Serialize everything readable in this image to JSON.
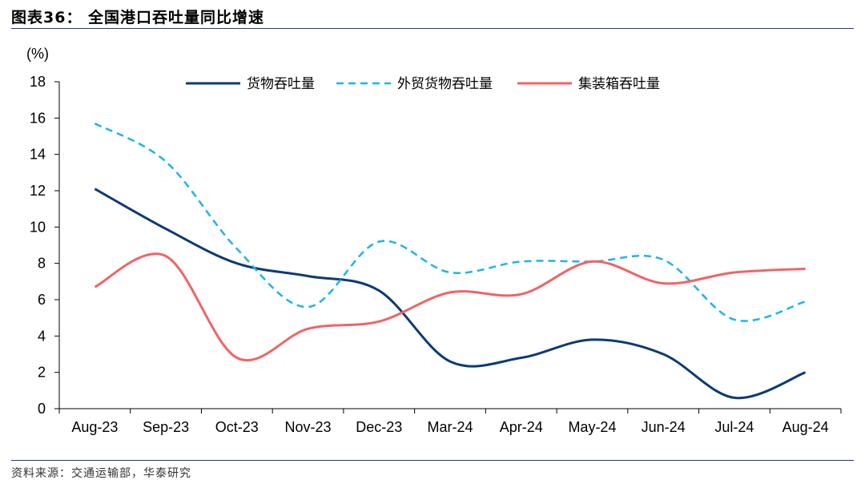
{
  "title": "图表36：  全国港口吞吐量同比增速",
  "source": "资料来源：交通运输部，华泰研究",
  "chart_data": {
    "type": "line",
    "unit_label": "(%)",
    "ylim": [
      0,
      18
    ],
    "yticks": [
      0,
      2,
      4,
      6,
      8,
      10,
      12,
      14,
      16,
      18
    ],
    "categories": [
      "Aug-23",
      "Sep-23",
      "Oct-23",
      "Nov-23",
      "Dec-23",
      "Mar-24",
      "Apr-24",
      "May-24",
      "Jun-24",
      "Jul-24",
      "Aug-24"
    ],
    "legend_position": "top",
    "grid": false,
    "series": [
      {
        "name": "货物吞吐量",
        "color": "#0e3a73",
        "dash": "solid",
        "values": [
          12.1,
          9.9,
          8.0,
          7.3,
          6.5,
          2.6,
          2.8,
          3.8,
          3.0,
          0.6,
          2.0
        ]
      },
      {
        "name": "外贸货物吞吐量",
        "color": "#1eb4e6",
        "dash": "dashed",
        "values": [
          15.7,
          13.6,
          8.8,
          5.6,
          9.2,
          7.5,
          8.1,
          8.1,
          8.2,
          4.9,
          5.9
        ]
      },
      {
        "name": "集装箱吞吐量",
        "color": "#ef6467",
        "dash": "solid",
        "values": [
          6.7,
          8.4,
          2.8,
          4.4,
          4.8,
          6.4,
          6.3,
          8.1,
          6.9,
          7.5,
          7.7
        ]
      }
    ]
  }
}
